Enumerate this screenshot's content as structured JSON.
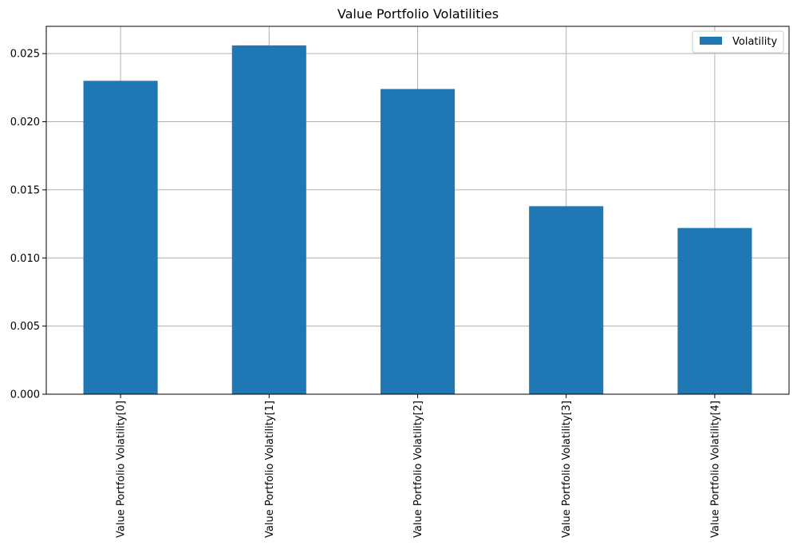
{
  "chart_data": {
    "type": "bar",
    "title": "Value Portfolio Volatilities",
    "xlabel": "",
    "ylabel": "",
    "categories": [
      "Value Portfolio Volatility[0]",
      "Value Portfolio Volatility[1]",
      "Value Portfolio Volatility[2]",
      "Value Portfolio Volatility[3]",
      "Value Portfolio Volatility[4]"
    ],
    "series": [
      {
        "name": "Volatility",
        "values": [
          0.023,
          0.0256,
          0.0224,
          0.0138,
          0.0122
        ]
      }
    ],
    "ylim": [
      0,
      0.027
    ],
    "yticks": [
      0.0,
      0.005,
      0.01,
      0.015,
      0.02,
      0.025
    ],
    "ytick_labels": [
      "0.000",
      "0.005",
      "0.010",
      "0.015",
      "0.020",
      "0.025"
    ],
    "grid": true,
    "legend_position": "top-right",
    "colors": {
      "bar": "#1f77b4",
      "grid": "#b0b0b0",
      "axis": "#000000"
    }
  }
}
